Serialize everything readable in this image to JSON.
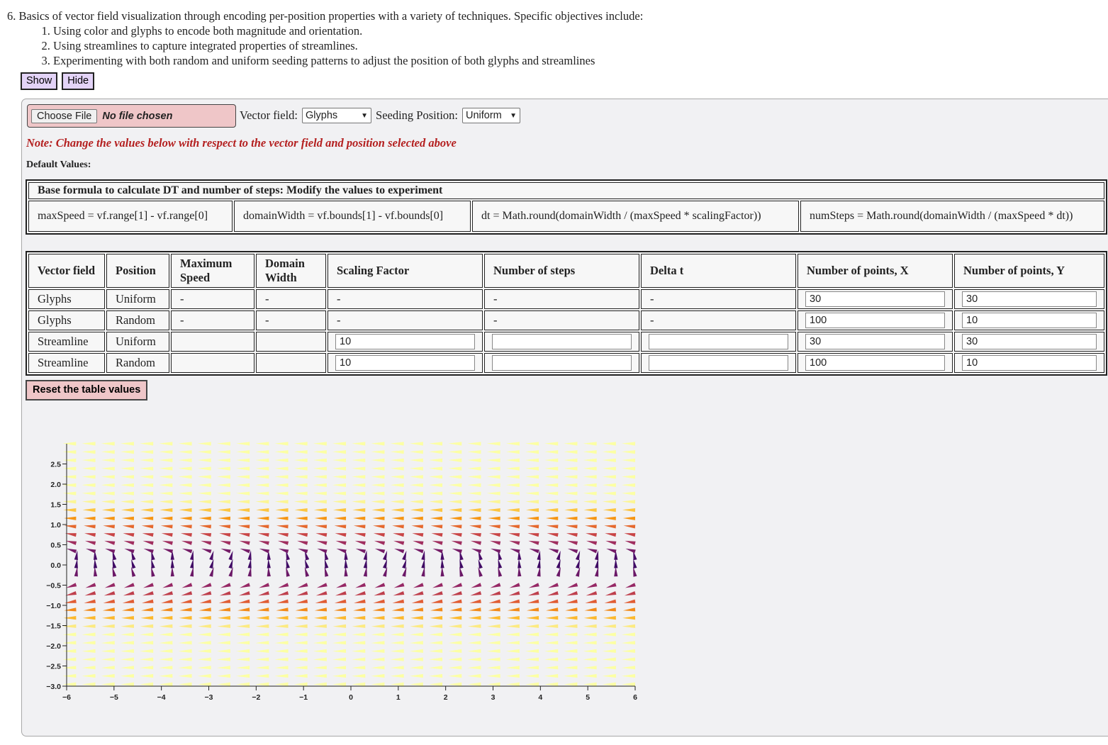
{
  "intro": {
    "heading": "6. Basics of vector field visualization through encoding per-position properties with a variety of techniques. Specific objectives include:",
    "objectives": [
      "Using color and glyphs to encode both magnitude and orientation.",
      "Using streamlines to capture integrated properties of streamlines.",
      "Experimenting with both random and uniform seeding patterns to adjust the position of both glyphs and streamlines"
    ]
  },
  "buttons": {
    "show": "Show",
    "hide": "Hide"
  },
  "controls": {
    "choose_file": "Choose File",
    "no_file": "No file chosen",
    "vector_field_label": "Vector field:",
    "vector_field_value": "Glyphs",
    "seeding_label": "Seeding Position:",
    "seeding_value": "Uniform"
  },
  "note": "Note: Change the values below with respect to the vector field and position selected above",
  "default_values_label": "Default Values:",
  "formula_table": {
    "header": "Base formula to calculate DT and number of steps: Modify the values to experiment",
    "cells": [
      "maxSpeed = vf.range[1] - vf.range[0]",
      "domainWidth = vf.bounds[1] - vf.bounds[0]",
      "dt = Math.round(domainWidth / (maxSpeed * scalingFactor))",
      "numSteps = Math.round(domainWidth / (maxSpeed * dt))"
    ]
  },
  "values_table": {
    "headers": [
      "Vector field",
      "Position",
      "Maximum Speed",
      "Domain Width",
      "Scaling Factor",
      "Number of steps",
      "Delta t",
      "Number of points, X",
      "Number of points, Y"
    ],
    "rows": [
      {
        "field": "Glyphs",
        "position": "Uniform",
        "max_speed": "-",
        "domain_width": "-",
        "scaling": "-",
        "steps": "-",
        "dt": "-",
        "nx": "30",
        "ny": "30"
      },
      {
        "field": "Glyphs",
        "position": "Random",
        "max_speed": "-",
        "domain_width": "-",
        "scaling": "-",
        "steps": "-",
        "dt": "-",
        "nx": "100",
        "ny": "10"
      },
      {
        "field": "Streamline",
        "position": "Uniform",
        "max_speed": "",
        "domain_width": "",
        "scaling": "10",
        "steps": "",
        "dt": "",
        "nx": "30",
        "ny": "30"
      },
      {
        "field": "Streamline",
        "position": "Random",
        "max_speed": "",
        "domain_width": "",
        "scaling": "10",
        "steps": "",
        "dt": "",
        "nx": "100",
        "ny": "10"
      }
    ]
  },
  "reset_button": "Reset the table values",
  "plot": {
    "x_ticks": [
      "−6",
      "−5",
      "−4",
      "−3",
      "−2",
      "−1",
      "0",
      "1",
      "2",
      "3",
      "4",
      "5",
      "6"
    ],
    "y_ticks": [
      "2.5",
      "2.0",
      "1.5",
      "1.0",
      "0.5",
      "0.0",
      "−0.5",
      "−1.0",
      "−1.5",
      "−2.0",
      "−2.5",
      "−3.0"
    ],
    "x_range": [
      -6,
      6
    ],
    "y_range": [
      -3,
      3
    ],
    "colormap": [
      "#000004",
      "#420a68",
      "#932667",
      "#dd513a",
      "#fca50a",
      "#fcffa4"
    ]
  }
}
